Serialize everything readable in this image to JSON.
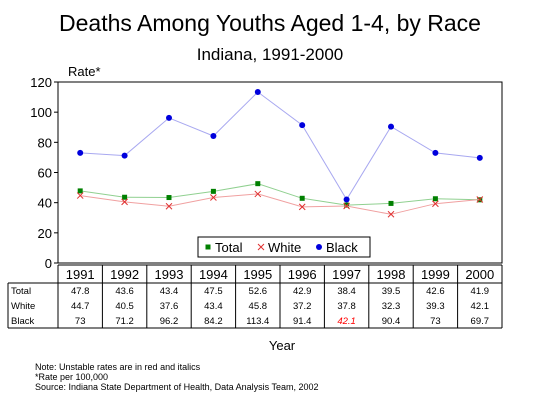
{
  "title": "Deaths Among Youths Aged 1-4, by Race",
  "subtitle": "Indiana, 1991-2000",
  "chart_data": {
    "type": "line",
    "title": "Deaths Among Youths Aged 1-4, by Race",
    "subtitle": "Indiana, 1991-2000",
    "ylabel": "Rate*",
    "xlabel": "Year",
    "ylim": [
      0,
      120
    ],
    "yticks": [
      0,
      20,
      40,
      60,
      80,
      100,
      120
    ],
    "grid": false,
    "legend_position": "bottom-center",
    "categories": [
      "1991",
      "1992",
      "1993",
      "1994",
      "1995",
      "1996",
      "1997",
      "1998",
      "1999",
      "2000"
    ],
    "series": [
      {
        "name": "Total",
        "values": [
          47.8,
          43.6,
          43.4,
          47.5,
          52.6,
          42.9,
          38.4,
          39.5,
          42.6,
          41.9
        ],
        "labels": [
          "47.8",
          "43.6",
          "43.4",
          "47.5",
          "52.6",
          "42.9",
          "38.4",
          "39.5",
          "42.6",
          "41.9"
        ],
        "marker": "square",
        "marker_color": "#008000",
        "line_color": "#90d090"
      },
      {
        "name": "White",
        "values": [
          44.7,
          40.5,
          37.6,
          43.4,
          45.8,
          37.2,
          37.8,
          32.3,
          39.3,
          42.1
        ],
        "labels": [
          "44.7",
          "40.5",
          "37.6",
          "43.4",
          "45.8",
          "37.2",
          "37.8",
          "32.3",
          "39.3",
          "42.1"
        ],
        "marker": "x",
        "marker_color": "#e03030",
        "line_color": "#f0a0a0"
      },
      {
        "name": "Black",
        "values": [
          73,
          71.2,
          96.2,
          84.2,
          113.4,
          91.4,
          42.1,
          90.4,
          73,
          69.7
        ],
        "labels": [
          "73",
          "71.2",
          "96.2",
          "84.2",
          "113.4",
          "91.4",
          "42.1",
          "90.4",
          "73",
          "69.7"
        ],
        "unstable": [
          false,
          false,
          false,
          false,
          false,
          false,
          true,
          false,
          false,
          false
        ],
        "marker": "circle",
        "marker_color": "#0000dd",
        "line_color": "#a8a8f0"
      }
    ],
    "unstable_color": "#ff0000"
  },
  "notes": [
    "Note:  Unstable rates are in red and italics",
    "*Rate per 100,000",
    "Source:  Indiana State Department of Health, Data Analysis Team, 2002"
  ]
}
